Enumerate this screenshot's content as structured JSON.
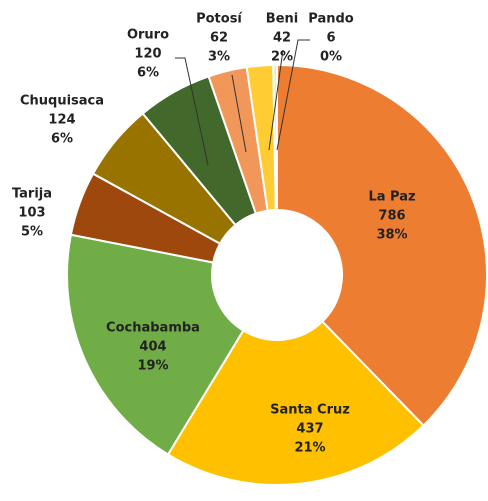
{
  "chart_data": {
    "type": "donut",
    "categories": [
      "La Paz",
      "Santa Cruz",
      "Cochabamba",
      "Tarija",
      "Chuquisaca",
      "Oruro",
      "Potosí",
      "Beni",
      "Pando"
    ],
    "values": [
      786,
      437,
      404,
      103,
      124,
      120,
      62,
      42,
      6
    ],
    "percent_labels": [
      "38%",
      "21%",
      "19%",
      "5%",
      "6%",
      "6%",
      "3%",
      "2%",
      "0%"
    ],
    "colors": [
      "#ED7D31",
      "#FFC000",
      "#70AD47",
      "#9E480E",
      "#997300",
      "#43682B",
      "#F1975A",
      "#FFCD33",
      "#E2EFB5"
    ]
  }
}
